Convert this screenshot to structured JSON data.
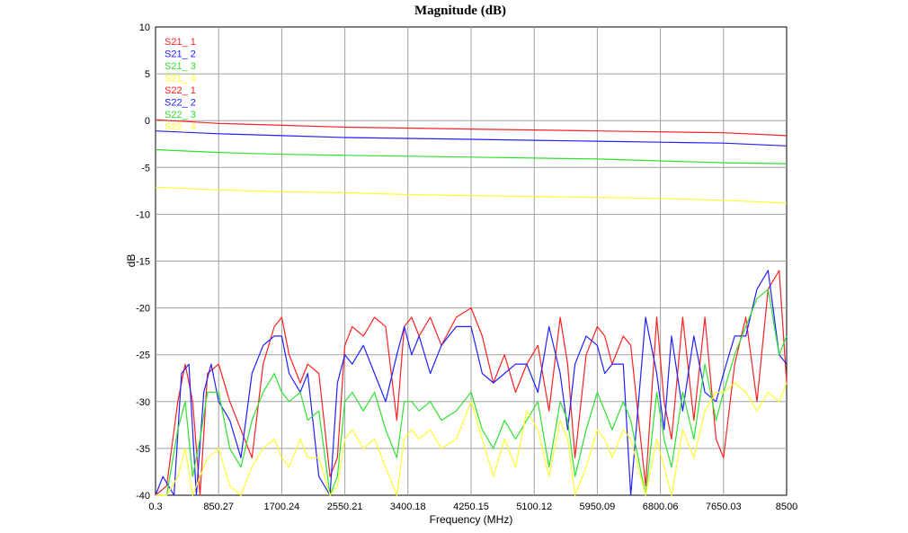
{
  "chart_data": {
    "type": "line",
    "title": "Magnitude (dB)",
    "xlabel": "Frequency (MHz)",
    "ylabel": "dB",
    "xlim": [
      0.3,
      8500
    ],
    "ylim": [
      -40,
      10
    ],
    "x_ticks": [
      "0.3",
      "850.27",
      "1700.24",
      "2550.21",
      "3400.18",
      "4250.15",
      "5100.12",
      "5950.09",
      "6800.06",
      "7650.03",
      "8500"
    ],
    "y_ticks": [
      "10",
      "5",
      "0",
      "-5",
      "-10",
      "-15",
      "-20",
      "-25",
      "-30",
      "-35",
      "-40"
    ],
    "grid": true,
    "legend_position": "top-left",
    "series": [
      {
        "name": "S21_ 1",
        "color": "#ff2020",
        "x": [
          0.3,
          850,
          1700,
          2550,
          3400,
          4250,
          5100,
          5950,
          6800,
          7650,
          8500
        ],
        "y": [
          0.1,
          -0.3,
          -0.5,
          -0.7,
          -0.8,
          -0.9,
          -1.0,
          -1.1,
          -1.2,
          -1.3,
          -1.6
        ]
      },
      {
        "name": "S21_ 2",
        "color": "#2020ff",
        "x": [
          0.3,
          850,
          1700,
          2550,
          3400,
          4250,
          5100,
          5950,
          6800,
          7650,
          8500
        ],
        "y": [
          -1.1,
          -1.4,
          -1.6,
          -1.8,
          -1.9,
          -2.0,
          -2.1,
          -2.2,
          -2.3,
          -2.4,
          -2.7
        ]
      },
      {
        "name": "S21_ 3",
        "color": "#30e030",
        "x": [
          0.3,
          850,
          1700,
          2550,
          3400,
          4250,
          5100,
          5950,
          6800,
          7650,
          8500
        ],
        "y": [
          -3.1,
          -3.4,
          -3.6,
          -3.7,
          -3.8,
          -3.9,
          -4.0,
          -4.1,
          -4.3,
          -4.5,
          -4.6
        ]
      },
      {
        "name": "S21_ 4",
        "color": "#ffff30",
        "x": [
          0.3,
          850,
          1700,
          2550,
          3400,
          4250,
          5100,
          5950,
          6800,
          7650,
          8500
        ],
        "y": [
          -7.1,
          -7.4,
          -7.6,
          -7.7,
          -7.9,
          -8.0,
          -8.1,
          -8.2,
          -8.3,
          -8.5,
          -8.8
        ]
      },
      {
        "name": "S22_ 1",
        "color": "#ff2020",
        "x": [
          0.3,
          150,
          300,
          400,
          500,
          600,
          700,
          850,
          1000,
          1150,
          1300,
          1450,
          1600,
          1700,
          1800,
          1950,
          2050,
          2200,
          2350,
          2450,
          2550,
          2650,
          2800,
          2950,
          3100,
          3250,
          3350,
          3450,
          3550,
          3700,
          3850,
          4050,
          4250,
          4400,
          4550,
          4700,
          4850,
          5000,
          5150,
          5300,
          5450,
          5550,
          5650,
          5800,
          5950,
          6050,
          6150,
          6300,
          6400,
          6600,
          6750,
          6850,
          6950,
          7100,
          7250,
          7400,
          7550,
          7650,
          7800,
          7950,
          8100,
          8250,
          8400,
          8500
        ],
        "y": [
          -40,
          -39,
          -30,
          -26,
          -30,
          -40,
          -27,
          -26,
          -30,
          -33,
          -36,
          -26,
          -22,
          -21,
          -25,
          -28,
          -26,
          -27,
          -38,
          -36,
          -24,
          -22,
          -23,
          -21,
          -22,
          -32,
          -22,
          -21,
          -23,
          -21,
          -24,
          -21,
          -20,
          -23,
          -28,
          -25,
          -29,
          -26,
          -24,
          -31,
          -21,
          -26,
          -36,
          -25,
          -22,
          -23,
          -26,
          -23,
          -24,
          -39,
          -21,
          -30,
          -34,
          -21,
          -32,
          -21,
          -34,
          -36,
          -26,
          -21,
          -30,
          -18,
          -16,
          -28
        ]
      },
      {
        "name": "S22_ 2",
        "color": "#2020ff",
        "x": [
          0.3,
          100,
          250,
          350,
          450,
          550,
          650,
          750,
          850,
          1000,
          1150,
          1300,
          1450,
          1600,
          1700,
          1800,
          1950,
          2050,
          2200,
          2350,
          2450,
          2550,
          2650,
          2800,
          2950,
          3100,
          3250,
          3350,
          3450,
          3550,
          3700,
          3850,
          4050,
          4250,
          4400,
          4550,
          4700,
          4850,
          5000,
          5150,
          5300,
          5450,
          5550,
          5650,
          5800,
          5950,
          6050,
          6150,
          6300,
          6400,
          6600,
          6750,
          6850,
          6950,
          7100,
          7250,
          7400,
          7550,
          7650,
          7800,
          7950,
          8100,
          8250,
          8400,
          8500
        ],
        "y": [
          -40,
          -38,
          -40,
          -27,
          -26,
          -40,
          -29,
          -26,
          -30,
          -32,
          -36,
          -27,
          -24,
          -23,
          -23,
          -27,
          -29,
          -27,
          -38,
          -40,
          -28,
          -25,
          -26,
          -24,
          -27,
          -30,
          -25,
          -22,
          -25,
          -23,
          -27,
          -24,
          -22,
          -22,
          -27,
          -28,
          -27,
          -26,
          -26,
          -29,
          -22,
          -27,
          -33,
          -26,
          -23,
          -24,
          -27,
          -26,
          -26,
          -40,
          -21,
          -27,
          -33,
          -23,
          -31,
          -23,
          -29,
          -30,
          -27,
          -23,
          -23,
          -18,
          -16,
          -25,
          -26
        ]
      },
      {
        "name": "S22_ 3",
        "color": "#30e030",
        "x": [
          0.3,
          150,
          300,
          400,
          500,
          600,
          700,
          850,
          1000,
          1150,
          1300,
          1450,
          1600,
          1700,
          1800,
          1950,
          2050,
          2200,
          2350,
          2450,
          2550,
          2650,
          2800,
          2950,
          3100,
          3250,
          3350,
          3450,
          3550,
          3700,
          3850,
          4050,
          4250,
          4400,
          4550,
          4700,
          4850,
          5000,
          5150,
          5300,
          5450,
          5550,
          5650,
          5800,
          5950,
          6050,
          6150,
          6300,
          6400,
          6600,
          6750,
          6850,
          6950,
          7100,
          7250,
          7400,
          7550,
          7650,
          7800,
          7950,
          8100,
          8250,
          8400,
          8500
        ],
        "y": [
          -40,
          -40,
          -33,
          -30,
          -38,
          -34,
          -29,
          -29,
          -35,
          -37,
          -32,
          -29,
          -27,
          -29,
          -30,
          -29,
          -32,
          -31,
          -40,
          -38,
          -30,
          -29,
          -31,
          -29,
          -33,
          -36,
          -30,
          -30,
          -31,
          -30,
          -32,
          -31,
          -29,
          -33,
          -35,
          -32,
          -34,
          -32,
          -30,
          -37,
          -30,
          -32,
          -38,
          -33,
          -29,
          -31,
          -33,
          -30,
          -32,
          -40,
          -29,
          -34,
          -37,
          -29,
          -34,
          -26,
          -32,
          -29,
          -25,
          -22,
          -19,
          -18,
          -25,
          -23
        ]
      },
      {
        "name": "S22_ 4",
        "color": "#ffff30",
        "x": [
          0.3,
          150,
          300,
          400,
          500,
          600,
          700,
          850,
          1000,
          1150,
          1300,
          1450,
          1600,
          1700,
          1800,
          1950,
          2050,
          2200,
          2350,
          2450,
          2550,
          2650,
          2800,
          2950,
          3100,
          3250,
          3350,
          3450,
          3550,
          3700,
          3850,
          4050,
          4250,
          4400,
          4550,
          4700,
          4850,
          5000,
          5150,
          5300,
          5450,
          5550,
          5650,
          5800,
          5950,
          6050,
          6150,
          6300,
          6400,
          6600,
          6750,
          6850,
          6950,
          7100,
          7250,
          7400,
          7550,
          7650,
          7800,
          7950,
          8100,
          8250,
          8400,
          8500
        ],
        "y": [
          -40,
          -40,
          -38,
          -35,
          -40,
          -38,
          -36,
          -35,
          -39,
          -40,
          -37,
          -35,
          -34,
          -36,
          -37,
          -34,
          -36,
          -36,
          -40,
          -39,
          -34,
          -33,
          -35,
          -34,
          -37,
          -40,
          -34,
          -33,
          -34,
          -33,
          -35,
          -34,
          -30,
          -34,
          -38,
          -34,
          -37,
          -31,
          -33,
          -38,
          -32,
          -34,
          -40,
          -37,
          -33,
          -34,
          -36,
          -33,
          -34,
          -40,
          -34,
          -37,
          -40,
          -33,
          -36,
          -31,
          -29,
          -29,
          -28,
          -29,
          -31,
          -29,
          -30,
          -28
        ]
      }
    ]
  }
}
